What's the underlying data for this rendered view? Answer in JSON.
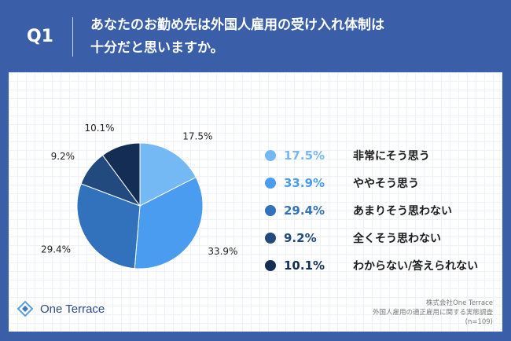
{
  "header": {
    "q_label": "Q1",
    "title_line1": "あなたのお勤め先は外国人雇用の受け入れ体制は",
    "title_line2": "十分だと思いますか。"
  },
  "chart_data": {
    "type": "pie",
    "slices": [
      {
        "label": "非常にそう思う",
        "value": 17.5,
        "value_label": "17.5%",
        "color": "#74b8f4"
      },
      {
        "label": "ややそう思う",
        "value": 33.9,
        "value_label": "33.9%",
        "color": "#4a9cf0"
      },
      {
        "label": "あまりそう思わない",
        "value": 29.4,
        "value_label": "29.4%",
        "color": "#3272bd"
      },
      {
        "label": "全くそう思わない",
        "value": 9.2,
        "value_label": "9.2%",
        "color": "#234a7f"
      },
      {
        "label": "わからない/答えられない",
        "value": 10.1,
        "value_label": "10.1%",
        "color": "#142d55"
      }
    ]
  },
  "logo": {
    "text": "One Terrace"
  },
  "source": {
    "line1": "株式会社One Terrace",
    "line2": "外国人雇用の適正雇用に関する実態調査",
    "line3": "(n=109)"
  },
  "colors": {
    "header_bg": "#3a5fa8",
    "card_bg": "#ffffff"
  }
}
